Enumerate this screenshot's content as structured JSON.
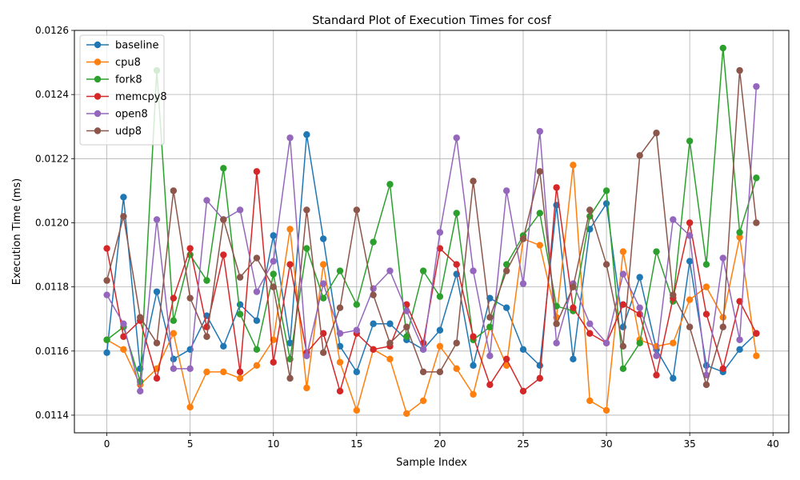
{
  "chart_data": {
    "type": "line",
    "title": "Standard Plot of Execution Times for cosf",
    "xlabel": "Sample Index",
    "ylabel": "Execution Time (ms)",
    "xlim": [
      -1.95,
      40.95
    ],
    "ylim": [
      0.011345,
      0.0126
    ],
    "xticks": [
      0,
      5,
      10,
      15,
      20,
      25,
      30,
      35,
      40
    ],
    "xtick_labels": [
      "0",
      "5",
      "10",
      "15",
      "20",
      "25",
      "30",
      "35",
      "40"
    ],
    "yticks": [
      0.0114,
      0.0116,
      0.0118,
      0.012,
      0.0122,
      0.0124,
      0.0126
    ],
    "ytick_labels": [
      "0.0114",
      "0.0116",
      "0.0118",
      "0.0120",
      "0.0122",
      "0.0124",
      "0.0126"
    ],
    "grid": true,
    "legend_position": "top-left",
    "x": [
      0,
      1,
      2,
      3,
      4,
      5,
      6,
      7,
      8,
      9,
      10,
      11,
      12,
      13,
      14,
      15,
      16,
      17,
      18,
      19,
      20,
      21,
      22,
      23,
      24,
      25,
      26,
      27,
      28,
      29,
      30,
      31,
      32,
      33,
      34,
      35,
      36,
      37,
      38,
      39
    ],
    "series": [
      {
        "name": "baseline",
        "color": "#1f77b4",
        "values": [
          0.011595,
          0.01208,
          0.011545,
          0.011785,
          0.011575,
          0.011605,
          0.01171,
          0.011615,
          0.011745,
          0.011695,
          0.01196,
          0.011625,
          0.012275,
          0.01195,
          0.011615,
          0.011535,
          0.011685,
          0.011685,
          0.011635,
          0.011605,
          0.011665,
          0.01184,
          0.011555,
          0.011765,
          0.011735,
          0.011605,
          0.011555,
          0.012055,
          0.011575,
          0.01198,
          0.01206,
          0.011675,
          0.01183,
          0.011605,
          0.011515,
          0.01188,
          0.011555,
          0.011535,
          0.011605,
          0.011655
        ]
      },
      {
        "name": "cpu8",
        "color": "#ff7f0e",
        "values": [
          0.011635,
          0.011605,
          0.011495,
          0.011545,
          0.011655,
          0.011425,
          0.011535,
          0.011535,
          0.011515,
          0.011555,
          0.011635,
          0.01198,
          0.011485,
          0.01187,
          0.011565,
          0.011415,
          0.011605,
          0.011575,
          0.011405,
          0.011445,
          0.011615,
          0.011545,
          0.011465,
          0.011675,
          0.011555,
          0.01195,
          0.01193,
          0.011705,
          0.01218,
          0.011445,
          0.011415,
          0.01191,
          0.011635,
          0.011615,
          0.011625,
          0.01176,
          0.0118,
          0.011705,
          0.011955,
          0.011585
        ]
      },
      {
        "name": "fork8",
        "color": "#2ca02c",
        "values": [
          0.011635,
          0.011675,
          0.011505,
          0.012475,
          0.011695,
          0.0119,
          0.01182,
          0.01217,
          0.011715,
          0.011605,
          0.01184,
          0.011575,
          0.01192,
          0.011765,
          0.01185,
          0.011745,
          0.01194,
          0.01212,
          0.011645,
          0.01185,
          0.01177,
          0.01203,
          0.011635,
          0.011675,
          0.01187,
          0.01196,
          0.01203,
          0.01174,
          0.011725,
          0.01202,
          0.0121,
          0.011545,
          0.011625,
          0.01191,
          0.011755,
          0.012255,
          0.01187,
          0.012545,
          0.01197,
          0.01214
        ]
      },
      {
        "name": "memcpy8",
        "color": "#d62728",
        "values": [
          0.01192,
          0.011645,
          0.011695,
          0.011515,
          0.011765,
          0.01192,
          0.011675,
          0.0119,
          0.011535,
          0.01216,
          0.011565,
          0.01187,
          0.011595,
          0.011655,
          0.011475,
          0.011655,
          0.011605,
          0.011615,
          0.011745,
          0.011625,
          0.01192,
          0.01187,
          0.011645,
          0.011495,
          0.011575,
          0.011475,
          0.011515,
          0.01211,
          0.011735,
          0.011655,
          0.011625,
          0.011745,
          0.011715,
          0.011525,
          0.011765,
          0.012,
          0.011715,
          0.011545,
          0.011755,
          0.011655
        ]
      },
      {
        "name": "open8",
        "color": "#9467bd",
        "values": [
          0.011775,
          0.011685,
          0.011475,
          0.01201,
          0.011545,
          0.011545,
          0.01207,
          0.01201,
          0.01204,
          0.011785,
          0.01188,
          0.012265,
          0.011585,
          0.01181,
          0.011655,
          0.011665,
          0.011795,
          0.01185,
          0.011725,
          0.011605,
          0.01197,
          0.012265,
          0.01185,
          0.011585,
          0.0121,
          0.01181,
          0.012285,
          0.011625,
          0.01181,
          0.011685,
          0.011625,
          0.01184,
          0.011735,
          0.011585,
          0.01201,
          0.01196,
          0.011525,
          0.01189,
          0.011635,
          0.012425
        ]
      },
      {
        "name": "udp8",
        "color": "#8c564b",
        "values": [
          0.01182,
          0.01202,
          0.011705,
          0.011625,
          0.0121,
          0.011765,
          0.011645,
          0.01201,
          0.01183,
          0.01189,
          0.0118,
          0.011515,
          0.01204,
          0.011595,
          0.011735,
          0.01204,
          0.011775,
          0.011625,
          0.011675,
          0.011535,
          0.011535,
          0.011625,
          0.01213,
          0.011705,
          0.01185,
          0.01195,
          0.01216,
          0.011685,
          0.0118,
          0.01204,
          0.01187,
          0.011615,
          0.01221,
          0.01228,
          0.011775,
          0.011675,
          0.011495,
          0.011675,
          0.012475,
          0.012
        ]
      }
    ]
  }
}
